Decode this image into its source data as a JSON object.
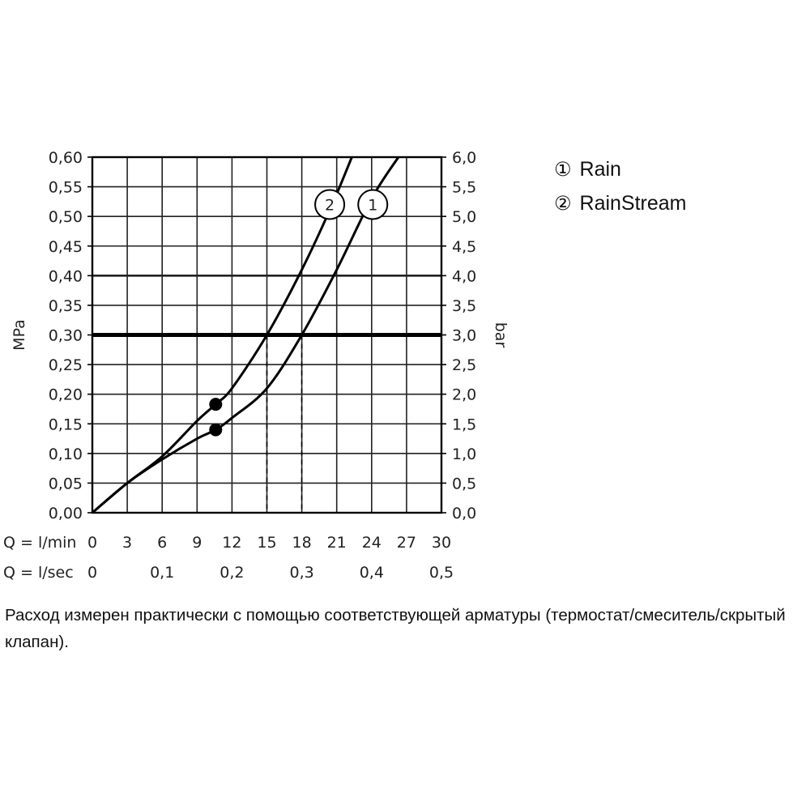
{
  "chart_data": {
    "type": "line",
    "ylabel_left": "MPa",
    "ylabel_right": "bar",
    "x_row_labels": [
      "Q = l/min",
      "Q = l/sec"
    ],
    "x_ticks_lmin": [
      "0",
      "3",
      "6",
      "9",
      "12",
      "15",
      "18",
      "21",
      "24",
      "27",
      "30"
    ],
    "x_ticks_lsec": [
      "0",
      "0,1",
      "0,2",
      "0,3",
      "0,4",
      "0,5"
    ],
    "y_ticks_left": [
      "0,00",
      "0,05",
      "0,10",
      "0,15",
      "0,20",
      "0,25",
      "0,30",
      "0,35",
      "0,40",
      "0,45",
      "0,50",
      "0,55",
      "0,60"
    ],
    "y_ticks_right": [
      "0,0",
      "0,5",
      "1,0",
      "1,5",
      "2,0",
      "2,5",
      "3,0",
      "3,5",
      "4,0",
      "4,5",
      "5,0",
      "5,5",
      "6,0"
    ],
    "xlim": [
      0,
      30
    ],
    "ylim": [
      0,
      0.6
    ],
    "grid": true,
    "reference_line": {
      "y": 0.3
    },
    "series": [
      {
        "name": "1",
        "x": [
          0,
          3,
          6,
          9,
          10.6,
          12,
          15,
          18,
          21,
          24,
          26.3
        ],
        "y": [
          0,
          0.05,
          0.09,
          0.125,
          0.14,
          0.16,
          0.21,
          0.3,
          0.41,
          0.53,
          0.6
        ],
        "marker": {
          "x": 10.6,
          "y": 0.14
        }
      },
      {
        "name": "2",
        "x": [
          0,
          3,
          6,
          9,
          10.6,
          12,
          15,
          18,
          20.5,
          22.3
        ],
        "y": [
          0,
          0.05,
          0.095,
          0.155,
          0.183,
          0.21,
          0.3,
          0.41,
          0.515,
          0.6
        ],
        "marker": {
          "x": 10.6,
          "y": 0.183
        }
      }
    ],
    "series_labels": [
      {
        "label": "2",
        "x": 20.4,
        "y": 0.52
      },
      {
        "label": "1",
        "x": 24.1,
        "y": 0.52
      }
    ],
    "dashed_drops": [
      15,
      18
    ]
  },
  "legend": {
    "items": [
      {
        "marker": "①",
        "label": "Rain"
      },
      {
        "marker": "②",
        "label": "RainStream"
      }
    ]
  },
  "caption": "Расход измерен практически с помощью соответствующей арматуры (термостат/смеситель/скрытый клапан)."
}
